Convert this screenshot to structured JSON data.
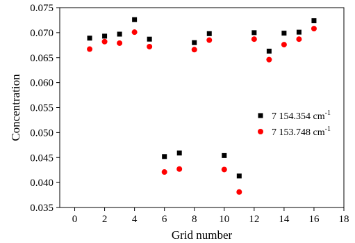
{
  "chart_data": {
    "type": "scatter",
    "xlabel": "Grid number",
    "ylabel": "Concentration",
    "xlim": [
      -1,
      18
    ],
    "ylim": [
      0.035,
      0.075
    ],
    "x_ticks": [
      0,
      2,
      4,
      6,
      8,
      10,
      12,
      14,
      16,
      18
    ],
    "y_ticks": [
      0.035,
      0.04,
      0.045,
      0.05,
      0.055,
      0.06,
      0.065,
      0.07,
      0.075
    ],
    "x_tick_labels": [
      "0",
      "2",
      "4",
      "6",
      "8",
      "10",
      "12",
      "14",
      "16",
      "18"
    ],
    "y_tick_labels": [
      "0.035",
      "0.040",
      "0.045",
      "0.050",
      "0.055",
      "0.060",
      "0.065",
      "0.070",
      "0.075"
    ],
    "grid": false,
    "legend_position": "right",
    "series": [
      {
        "name": "7 154.354 cm-1",
        "label_main": "7 154.354 cm",
        "label_sup": "-1",
        "marker": "square",
        "color": "#000000",
        "x": [
          1,
          2,
          3,
          4,
          5,
          6,
          7,
          8,
          9,
          10,
          11,
          12,
          13,
          14,
          15,
          16
        ],
        "y": [
          0.0689,
          0.0693,
          0.0697,
          0.0726,
          0.0687,
          0.0452,
          0.0459,
          0.068,
          0.0698,
          0.0454,
          0.0413,
          0.07,
          0.0663,
          0.0699,
          0.0701,
          0.0724
        ]
      },
      {
        "name": "7 153.748 cm-1",
        "label_main": "7 153.748 cm",
        "label_sup": "-1",
        "marker": "circle",
        "color": "#ff0000",
        "x": [
          1,
          2,
          3,
          4,
          5,
          6,
          7,
          8,
          9,
          10,
          11,
          12,
          13,
          14,
          15,
          16
        ],
        "y": [
          0.0667,
          0.0682,
          0.0679,
          0.0701,
          0.0672,
          0.0421,
          0.0427,
          0.0666,
          0.0685,
          0.0426,
          0.0381,
          0.0687,
          0.0646,
          0.0676,
          0.0687,
          0.0708
        ]
      }
    ]
  }
}
